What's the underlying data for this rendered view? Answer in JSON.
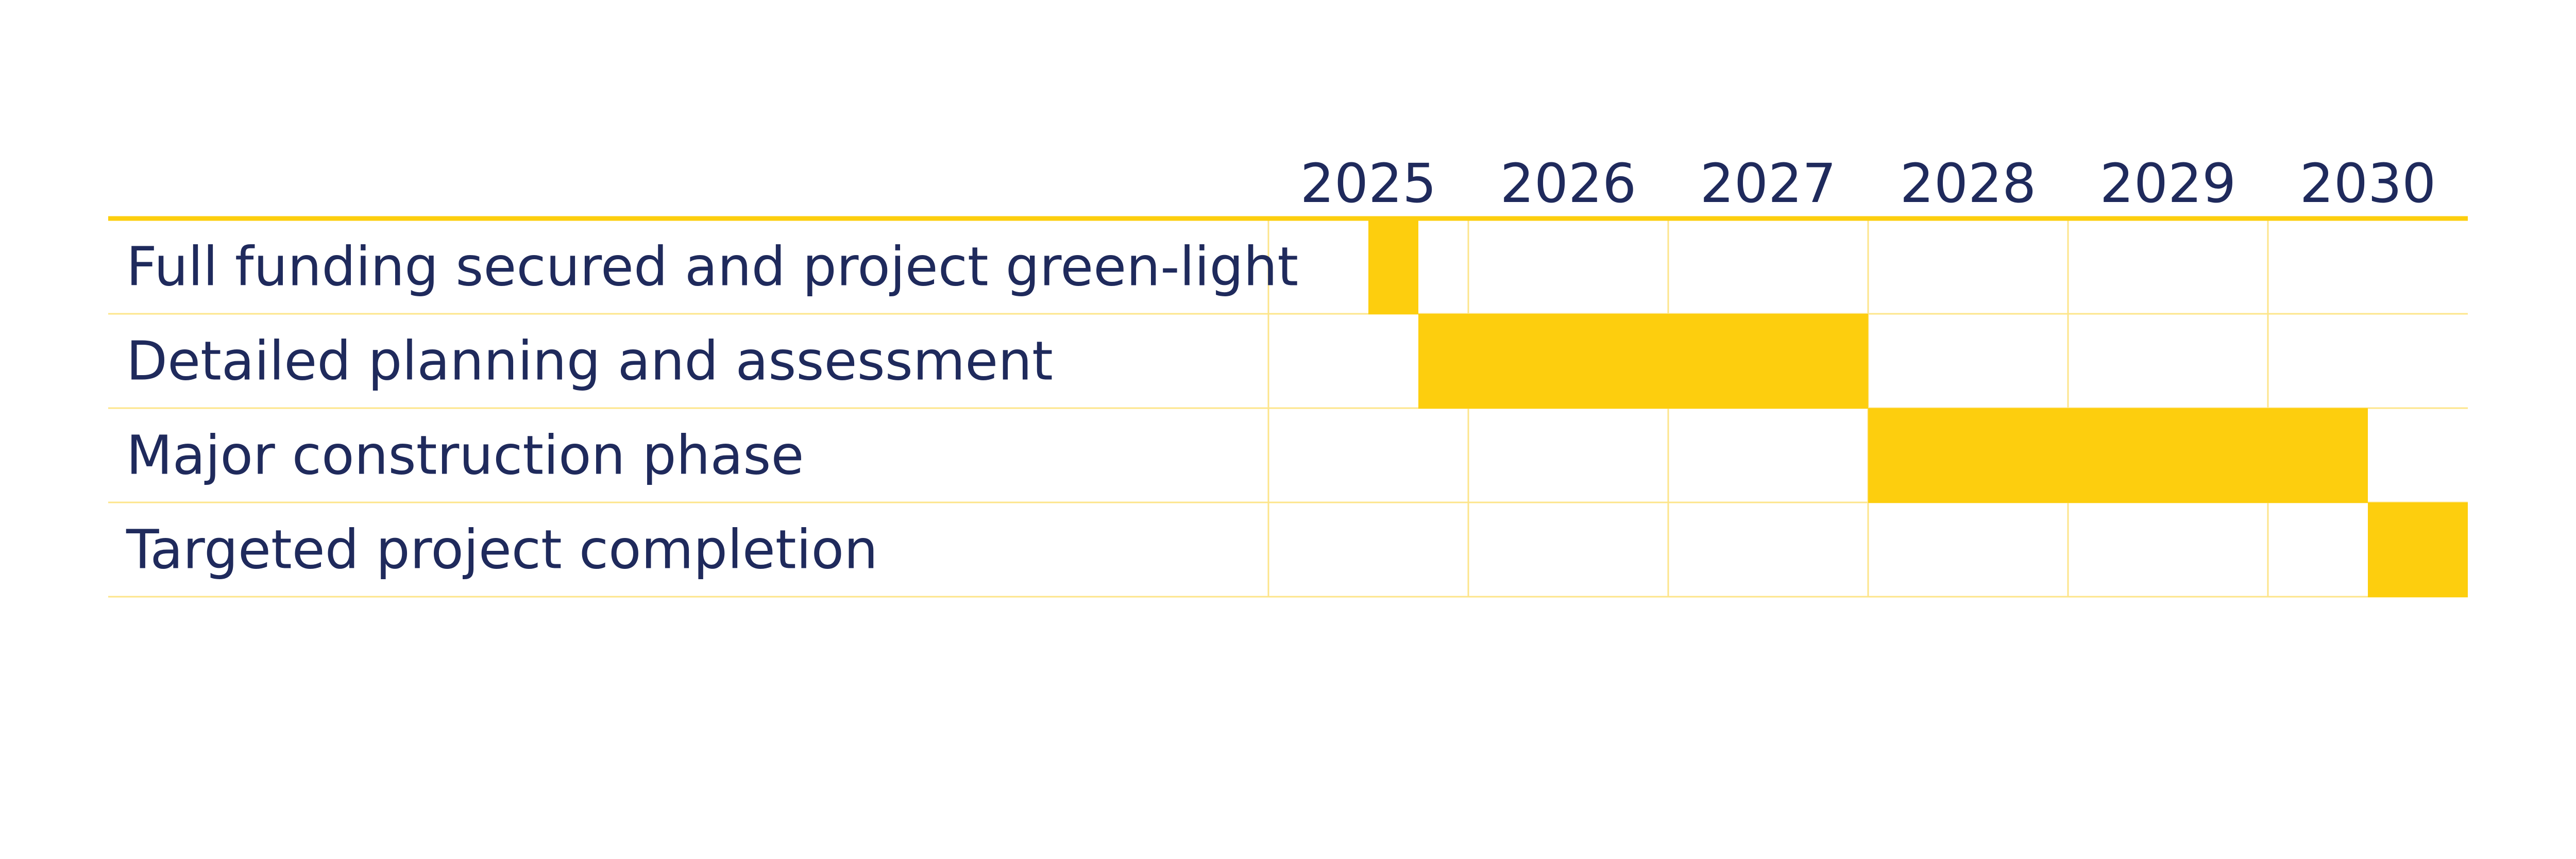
{
  "chart_data": {
    "type": "gantt",
    "years": [
      "2025",
      "2026",
      "2027",
      "2028",
      "2029",
      "2030"
    ],
    "timeline": {
      "start": 2025.0,
      "end": 2031.0
    },
    "tasks": [
      {
        "label": "Full funding secured and project green-light",
        "start": 2025.5,
        "end": 2025.75
      },
      {
        "label": "Detailed planning and assessment",
        "start": 2025.75,
        "end": 2028.0
      },
      {
        "label": "Major construction phase",
        "start": 2028.0,
        "end": 2030.5
      },
      {
        "label": "Targeted project completion",
        "start": 2030.5,
        "end": 2031.0
      }
    ],
    "colors": {
      "bar": "#fdce0e",
      "accent_line": "#fdce0e",
      "grid": "#fde58a",
      "text": "#1f2a5c"
    }
  }
}
